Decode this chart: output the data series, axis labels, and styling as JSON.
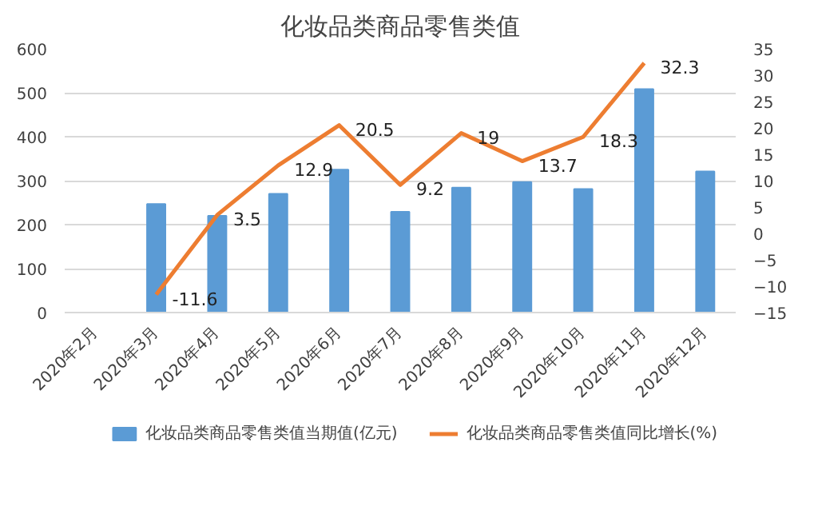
{
  "chart_data": {
    "type": "bar",
    "title": "化妆品类商品零售类值",
    "categories": [
      "2020年2月",
      "2020年3月",
      "2020年4月",
      "2020年5月",
      "2020年6月",
      "2020年7月",
      "2020年8月",
      "2020年9月",
      "2020年10月",
      "2020年11月",
      "2020年12月"
    ],
    "series": [
      {
        "name": "化妆品类商品零售类值当期值(亿元)",
        "color": "#5b9bd5",
        "values": [
          null,
          247,
          220,
          270,
          325,
          229,
          284,
          297,
          281,
          508,
          321
        ]
      },
      {
        "name": "化妆品类商品零售类值同比增长(%)",
        "type": "line",
        "axis": "y2",
        "color": "#ed7d31",
        "values": [
          null,
          -11.6,
          3.5,
          12.9,
          20.5,
          9.2,
          19,
          13.7,
          18.3,
          32.3,
          null
        ],
        "value_labels": [
          null,
          "-11.6",
          "3.5",
          "12.9",
          "20.5",
          "9.2",
          "19",
          "13.7",
          "18.3",
          "32.3",
          null
        ]
      }
    ],
    "ylim": [
      0,
      600
    ],
    "yticks": [
      0,
      100,
      200,
      300,
      400,
      500,
      600
    ],
    "y2lim": [
      -15,
      35
    ],
    "y2ticks": [
      -15,
      -10,
      -5,
      0,
      5,
      10,
      15,
      20,
      25,
      30,
      35
    ],
    "grid": "y",
    "legend": "bottom",
    "marker": "none",
    "line_style": "solid"
  }
}
